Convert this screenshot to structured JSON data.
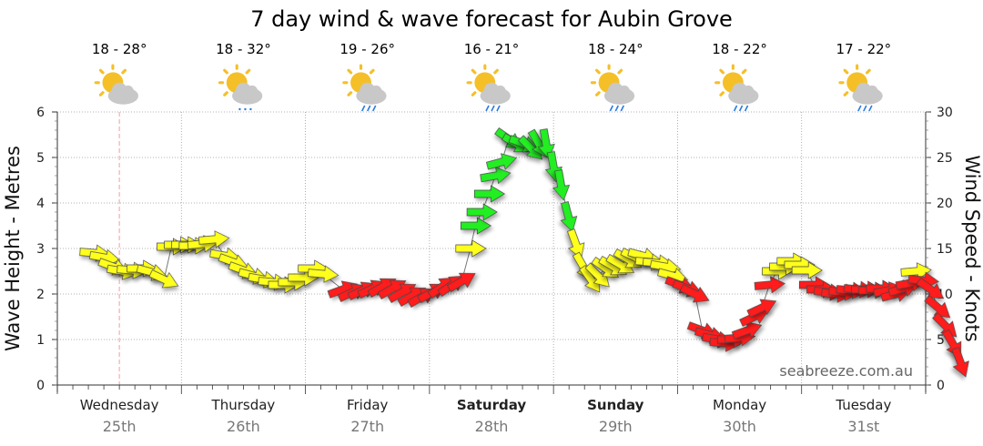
{
  "title": "7 day wind & wave forecast for Aubin Grove",
  "credit": "seabreeze.com.au",
  "colors": {
    "red": "#ff1a1a",
    "yellow": "#ffff1a",
    "green": "#22ee22",
    "grid": "#9a9a9a",
    "now_line": "#ff9a9a"
  },
  "days": [
    {
      "name": "Wednesday",
      "date": "25th",
      "temp": "18 - 28°",
      "weather_icon": "partly-cloudy-icon",
      "bold": false
    },
    {
      "name": "Thursday",
      "date": "26th",
      "temp": "18 - 32°",
      "weather_icon": "partly-cloudy-drizzle-icon",
      "bold": false
    },
    {
      "name": "Friday",
      "date": "27th",
      "temp": "19 - 26°",
      "weather_icon": "partly-cloudy-rain-icon",
      "bold": false
    },
    {
      "name": "Saturday",
      "date": "28th",
      "temp": "16 - 21°",
      "weather_icon": "partly-cloudy-rain-icon",
      "bold": true
    },
    {
      "name": "Sunday",
      "date": "29th",
      "temp": "18 - 24°",
      "weather_icon": "partly-cloudy-rain-icon",
      "bold": true
    },
    {
      "name": "Monday",
      "date": "30th",
      "temp": "18 - 22°",
      "weather_icon": "partly-cloudy-rain-icon",
      "bold": false
    },
    {
      "name": "Tuesday",
      "date": "31st",
      "temp": "17 - 22°",
      "weather_icon": "partly-cloudy-rain-icon",
      "bold": false
    }
  ],
  "chart_data": {
    "type": "line",
    "ylabel_left": "Wave Height - Metres",
    "ylabel_right": "Wind Speed - Knots",
    "yleft_range": [
      0,
      6
    ],
    "yright_range": [
      0,
      30
    ],
    "yleft_ticks": [
      "0",
      "1",
      "2",
      "3",
      "4",
      "5",
      "6"
    ],
    "yright_ticks": [
      "0",
      "5",
      "10",
      "15",
      "20",
      "25",
      "30"
    ],
    "grid": true,
    "x_unit": "day index (0 = start of Wednesday 25th)",
    "x_range": [
      0,
      7
    ],
    "series": [
      {
        "axis": "right",
        "note": "wind arrows: value = knots, dir = degrees arrow points (0 = right, 90 = up), color class",
        "points": [
          {
            "x": 0.3,
            "v": 14.5,
            "dir": -5,
            "c": "yellow"
          },
          {
            "x": 0.38,
            "v": 14.0,
            "dir": -10,
            "c": "yellow"
          },
          {
            "x": 0.45,
            "v": 13.0,
            "dir": -20,
            "c": "yellow"
          },
          {
            "x": 0.52,
            "v": 12.5,
            "dir": -10,
            "c": "yellow"
          },
          {
            "x": 0.6,
            "v": 12.6,
            "dir": -5,
            "c": "yellow"
          },
          {
            "x": 0.68,
            "v": 12.8,
            "dir": 0,
            "c": "yellow"
          },
          {
            "x": 0.76,
            "v": 12.4,
            "dir": -15,
            "c": "yellow"
          },
          {
            "x": 0.86,
            "v": 11.6,
            "dir": -25,
            "c": "yellow"
          },
          {
            "x": 0.92,
            "v": 15.2,
            "dir": 0,
            "c": "yellow"
          },
          {
            "x": 0.98,
            "v": 15.4,
            "dir": 0,
            "c": "yellow"
          },
          {
            "x": 1.04,
            "v": 15.4,
            "dir": 0,
            "c": "yellow"
          },
          {
            "x": 1.1,
            "v": 15.3,
            "dir": 0,
            "c": "yellow"
          },
          {
            "x": 1.17,
            "v": 15.5,
            "dir": 5,
            "c": "yellow"
          },
          {
            "x": 1.26,
            "v": 16.0,
            "dir": 5,
            "c": "yellow"
          },
          {
            "x": 1.35,
            "v": 14.2,
            "dir": -10,
            "c": "yellow"
          },
          {
            "x": 1.42,
            "v": 13.5,
            "dir": -20,
            "c": "yellow"
          },
          {
            "x": 1.5,
            "v": 12.6,
            "dir": -20,
            "c": "yellow"
          },
          {
            "x": 1.58,
            "v": 12.0,
            "dir": -15,
            "c": "yellow"
          },
          {
            "x": 1.66,
            "v": 11.6,
            "dir": -10,
            "c": "yellow"
          },
          {
            "x": 1.74,
            "v": 11.3,
            "dir": -5,
            "c": "yellow"
          },
          {
            "x": 1.82,
            "v": 11.0,
            "dir": 0,
            "c": "yellow"
          },
          {
            "x": 1.9,
            "v": 11.3,
            "dir": 0,
            "c": "yellow"
          },
          {
            "x": 1.98,
            "v": 11.8,
            "dir": 0,
            "c": "yellow"
          },
          {
            "x": 2.06,
            "v": 12.8,
            "dir": 0,
            "c": "yellow"
          },
          {
            "x": 2.14,
            "v": 12.2,
            "dir": -5,
            "c": "yellow"
          },
          {
            "x": 2.3,
            "v": 10.5,
            "dir": 20,
            "c": "red"
          },
          {
            "x": 2.38,
            "v": 10.2,
            "dir": 25,
            "c": "red"
          },
          {
            "x": 2.46,
            "v": 10.4,
            "dir": 25,
            "c": "red"
          },
          {
            "x": 2.54,
            "v": 10.6,
            "dir": 25,
            "c": "red"
          },
          {
            "x": 2.62,
            "v": 10.8,
            "dir": 30,
            "c": "red"
          },
          {
            "x": 2.7,
            "v": 10.6,
            "dir": 30,
            "c": "red"
          },
          {
            "x": 2.78,
            "v": 10.2,
            "dir": 30,
            "c": "red"
          },
          {
            "x": 2.86,
            "v": 9.8,
            "dir": 30,
            "c": "red"
          },
          {
            "x": 2.94,
            "v": 9.7,
            "dir": 30,
            "c": "red"
          },
          {
            "x": 3.02,
            "v": 10.2,
            "dir": 30,
            "c": "red"
          },
          {
            "x": 3.1,
            "v": 10.8,
            "dir": 35,
            "c": "red"
          },
          {
            "x": 3.18,
            "v": 11.0,
            "dir": 35,
            "c": "red"
          },
          {
            "x": 3.26,
            "v": 11.4,
            "dir": 30,
            "c": "red"
          },
          {
            "x": 3.33,
            "v": 15.0,
            "dir": 0,
            "c": "yellow"
          },
          {
            "x": 3.37,
            "v": 17.5,
            "dir": 0,
            "c": "green"
          },
          {
            "x": 3.42,
            "v": 19.0,
            "dir": 0,
            "c": "green"
          },
          {
            "x": 3.48,
            "v": 21.0,
            "dir": 0,
            "c": "green"
          },
          {
            "x": 3.53,
            "v": 23.0,
            "dir": 10,
            "c": "green"
          },
          {
            "x": 3.58,
            "v": 24.5,
            "dir": 15,
            "c": "green"
          },
          {
            "x": 3.64,
            "v": 27.0,
            "dir": -35,
            "c": "green"
          },
          {
            "x": 3.7,
            "v": 26.5,
            "dir": -30,
            "c": "green"
          },
          {
            "x": 3.76,
            "v": 26.5,
            "dir": -20,
            "c": "green"
          },
          {
            "x": 3.82,
            "v": 26.0,
            "dir": -45,
            "c": "green"
          },
          {
            "x": 3.88,
            "v": 26.5,
            "dir": -60,
            "c": "green"
          },
          {
            "x": 3.94,
            "v": 26.5,
            "dir": -80,
            "c": "green"
          },
          {
            "x": 4.0,
            "v": 24.0,
            "dir": -80,
            "c": "green"
          },
          {
            "x": 4.06,
            "v": 22.0,
            "dir": -80,
            "c": "green"
          },
          {
            "x": 4.12,
            "v": 18.5,
            "dir": -75,
            "c": "green"
          },
          {
            "x": 4.18,
            "v": 15.5,
            "dir": -70,
            "c": "yellow"
          },
          {
            "x": 4.24,
            "v": 13.0,
            "dir": -60,
            "c": "yellow"
          },
          {
            "x": 4.3,
            "v": 11.6,
            "dir": -55,
            "c": "yellow"
          },
          {
            "x": 4.36,
            "v": 12.0,
            "dir": -45,
            "c": "yellow"
          },
          {
            "x": 4.42,
            "v": 12.8,
            "dir": -35,
            "c": "yellow"
          },
          {
            "x": 4.48,
            "v": 13.0,
            "dir": -30,
            "c": "yellow"
          },
          {
            "x": 4.54,
            "v": 13.2,
            "dir": -30,
            "c": "yellow"
          },
          {
            "x": 4.6,
            "v": 13.8,
            "dir": -30,
            "c": "yellow"
          },
          {
            "x": 4.66,
            "v": 14.0,
            "dir": -25,
            "c": "yellow"
          },
          {
            "x": 4.72,
            "v": 14.2,
            "dir": -15,
            "c": "yellow"
          },
          {
            "x": 4.78,
            "v": 13.5,
            "dir": -5,
            "c": "yellow"
          },
          {
            "x": 4.84,
            "v": 13.4,
            "dir": -5,
            "c": "yellow"
          },
          {
            "x": 4.9,
            "v": 13.0,
            "dir": -10,
            "c": "yellow"
          },
          {
            "x": 4.96,
            "v": 12.0,
            "dir": -15,
            "c": "yellow"
          },
          {
            "x": 5.02,
            "v": 11.0,
            "dir": -20,
            "c": "red"
          },
          {
            "x": 5.08,
            "v": 10.6,
            "dir": -20,
            "c": "red"
          },
          {
            "x": 5.14,
            "v": 10.0,
            "dir": -25,
            "c": "red"
          },
          {
            "x": 5.2,
            "v": 6.0,
            "dir": -20,
            "c": "red"
          },
          {
            "x": 5.26,
            "v": 5.5,
            "dir": -15,
            "c": "red"
          },
          {
            "x": 5.32,
            "v": 5.0,
            "dir": -10,
            "c": "red"
          },
          {
            "x": 5.38,
            "v": 4.6,
            "dir": -5,
            "c": "red"
          },
          {
            "x": 5.44,
            "v": 5.0,
            "dir": 0,
            "c": "red"
          },
          {
            "x": 5.5,
            "v": 5.2,
            "dir": 5,
            "c": "red"
          },
          {
            "x": 5.56,
            "v": 6.0,
            "dir": 20,
            "c": "red"
          },
          {
            "x": 5.62,
            "v": 7.5,
            "dir": 25,
            "c": "red"
          },
          {
            "x": 5.68,
            "v": 8.5,
            "dir": 25,
            "c": "red"
          },
          {
            "x": 5.74,
            "v": 11.0,
            "dir": 5,
            "c": "red"
          },
          {
            "x": 5.8,
            "v": 12.5,
            "dir": 0,
            "c": "yellow"
          },
          {
            "x": 5.86,
            "v": 13.0,
            "dir": 0,
            "c": "yellow"
          },
          {
            "x": 5.92,
            "v": 13.6,
            "dir": 0,
            "c": "yellow"
          },
          {
            "x": 5.98,
            "v": 13.2,
            "dir": 0,
            "c": "yellow"
          },
          {
            "x": 6.04,
            "v": 12.6,
            "dir": 0,
            "c": "yellow"
          },
          {
            "x": 6.1,
            "v": 11.0,
            "dir": 0,
            "c": "red"
          },
          {
            "x": 6.16,
            "v": 10.5,
            "dir": 0,
            "c": "red"
          },
          {
            "x": 6.22,
            "v": 10.2,
            "dir": -5,
            "c": "red"
          },
          {
            "x": 6.28,
            "v": 10.0,
            "dir": -5,
            "c": "red"
          },
          {
            "x": 6.34,
            "v": 10.2,
            "dir": -5,
            "c": "red"
          },
          {
            "x": 6.4,
            "v": 10.4,
            "dir": -5,
            "c": "red"
          },
          {
            "x": 6.46,
            "v": 10.5,
            "dir": -5,
            "c": "red"
          },
          {
            "x": 6.52,
            "v": 10.5,
            "dir": 0,
            "c": "red"
          },
          {
            "x": 6.58,
            "v": 10.4,
            "dir": 0,
            "c": "red"
          },
          {
            "x": 6.64,
            "v": 10.6,
            "dir": 0,
            "c": "red"
          },
          {
            "x": 6.7,
            "v": 10.4,
            "dir": 10,
            "c": "red"
          },
          {
            "x": 6.76,
            "v": 10.0,
            "dir": 15,
            "c": "red"
          },
          {
            "x": 6.82,
            "v": 10.6,
            "dir": 15,
            "c": "red"
          },
          {
            "x": 6.88,
            "v": 11.2,
            "dir": 10,
            "c": "red"
          },
          {
            "x": 6.92,
            "v": 12.5,
            "dir": 5,
            "c": "yellow"
          },
          {
            "x": 6.98,
            "v": 11.5,
            "dir": -5,
            "c": "red"
          },
          {
            "x": 7.04,
            "v": 10.5,
            "dir": -35,
            "c": "red"
          },
          {
            "x": 7.1,
            "v": 8.5,
            "dir": -40,
            "c": "red"
          },
          {
            "x": 7.16,
            "v": 6.5,
            "dir": -45,
            "c": "red"
          },
          {
            "x": 7.22,
            "v": 4.5,
            "dir": -60,
            "c": "red"
          },
          {
            "x": 7.28,
            "v": 2.5,
            "dir": -70,
            "c": "red"
          }
        ]
      }
    ]
  }
}
